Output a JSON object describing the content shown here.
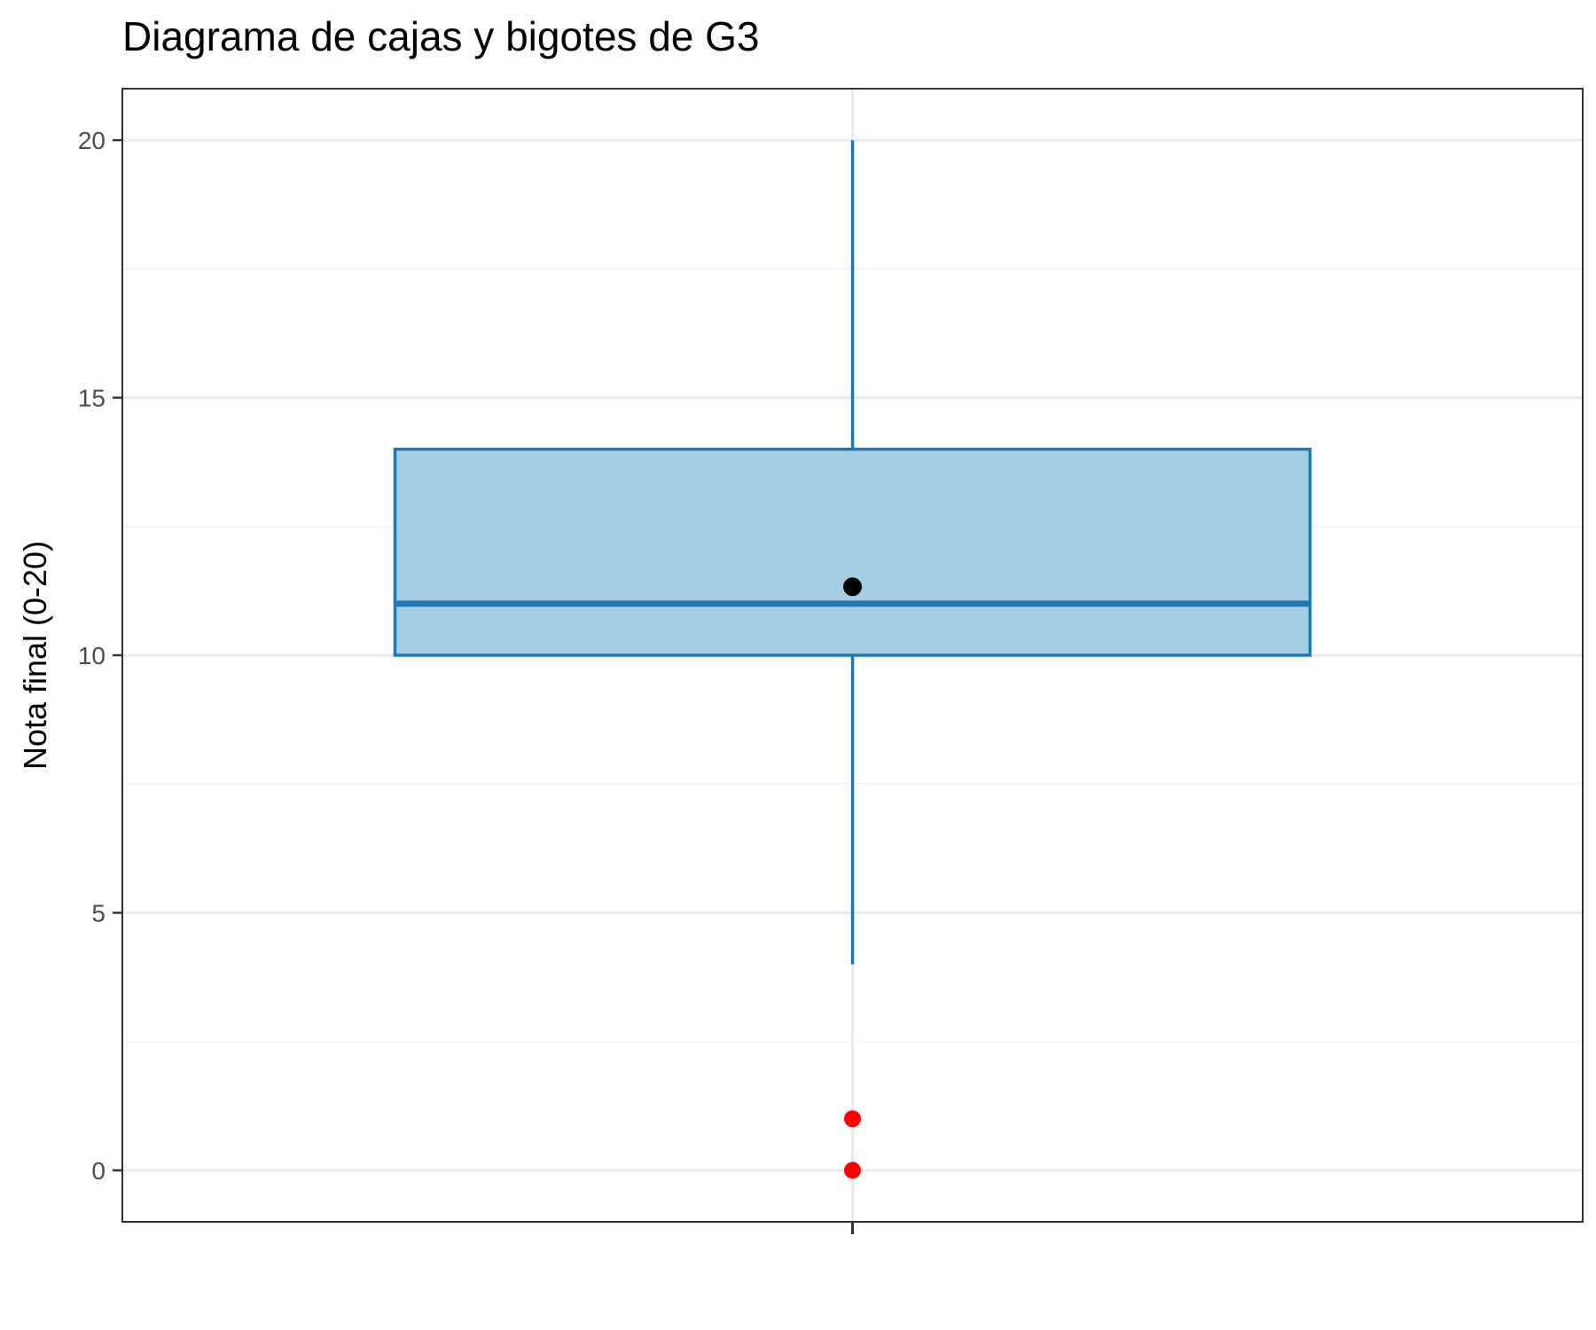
{
  "chart_data": {
    "type": "box",
    "title": "Diagrama de cajas y bigotes de G3",
    "xlabel": "",
    "ylabel": "Nota final (0-20)",
    "ylim": [
      -1,
      21
    ],
    "yticks": [
      0,
      5,
      10,
      15,
      20
    ],
    "grid": true,
    "legend": "none",
    "box": {
      "min": 4,
      "q1": 10,
      "median": 11,
      "q3": 14,
      "max": 20,
      "mean": 11.33
    },
    "outliers": [
      1,
      0
    ],
    "colors": {
      "box_fill": "#a6cee3",
      "box_stroke": "#1f78b4",
      "mean_point": "#000000",
      "outlier_point": "#ff0000",
      "grid_major": "#ebebeb",
      "grid_minor": "#f2f2f2",
      "panel_border": "#333333"
    }
  }
}
